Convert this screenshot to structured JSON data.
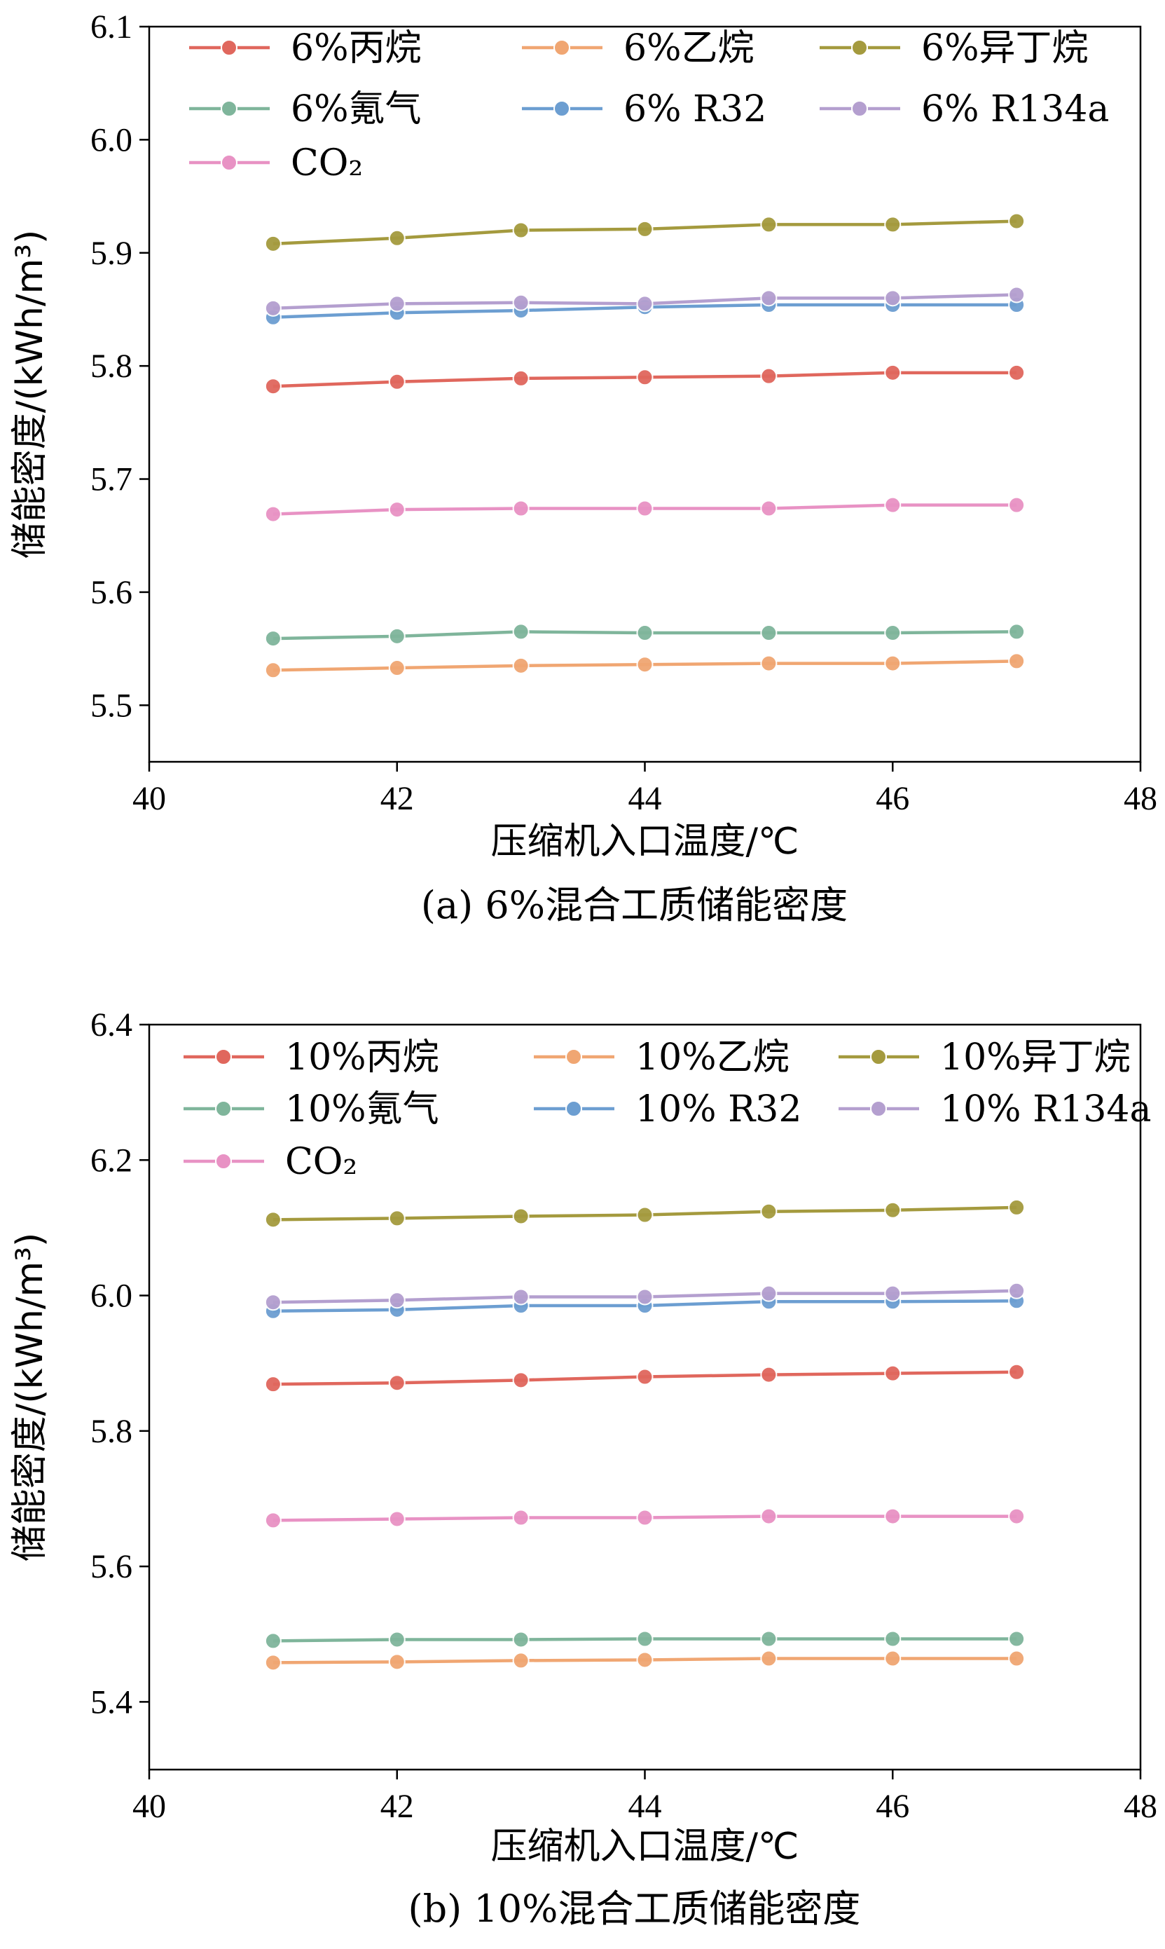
{
  "chart_data": [
    {
      "type": "line",
      "caption": "(a) 6%混合工质储能密度",
      "xlabel": "压缩机入口温度/℃",
      "ylabel": "储能密度/(kWh/m³)",
      "xlim": [
        40,
        48
      ],
      "ylim": [
        5.45,
        6.1
      ],
      "xticks": [
        "40",
        "42",
        "44",
        "46",
        "48"
      ],
      "yticks": [
        "5.5",
        "5.6",
        "5.7",
        "5.8",
        "5.9",
        "6.0",
        "6.1"
      ],
      "legend_position": "top",
      "x": [
        41,
        42,
        43,
        44,
        45,
        46,
        47
      ],
      "series": [
        {
          "name": "6%丙烷",
          "color": "#e0675d",
          "values": [
            5.782,
            5.786,
            5.789,
            5.79,
            5.791,
            5.794,
            5.794
          ]
        },
        {
          "name": "6%乙烷",
          "color": "#f0a672",
          "values": [
            5.531,
            5.533,
            5.535,
            5.536,
            5.537,
            5.537,
            5.539
          ]
        },
        {
          "name": "6%异丁烷",
          "color": "#a49a3e",
          "values": [
            5.908,
            5.913,
            5.92,
            5.921,
            5.925,
            5.925,
            5.928
          ]
        },
        {
          "name": "6%氪气",
          "color": "#7fb59b",
          "values": [
            5.559,
            5.561,
            5.565,
            5.564,
            5.564,
            5.564,
            5.565
          ]
        },
        {
          "name": "6% R32",
          "color": "#6c9ed1",
          "values": [
            5.843,
            5.847,
            5.849,
            5.852,
            5.854,
            5.854,
            5.854
          ]
        },
        {
          "name": "6% R134a",
          "color": "#b49fcf",
          "values": [
            5.851,
            5.855,
            5.856,
            5.855,
            5.86,
            5.86,
            5.863
          ]
        },
        {
          "name": "CO₂",
          "color": "#e892c4",
          "values": [
            5.669,
            5.673,
            5.674,
            5.674,
            5.674,
            5.677,
            5.677
          ]
        }
      ]
    },
    {
      "type": "line",
      "caption": "(b) 10%混合工质储能密度",
      "xlabel": "压缩机入口温度/℃",
      "ylabel": "储能密度/(kWh/m³)",
      "xlim": [
        40,
        48
      ],
      "ylim": [
        5.3,
        6.4
      ],
      "xticks": [
        "40",
        "42",
        "44",
        "46",
        "48"
      ],
      "yticks": [
        "5.4",
        "5.6",
        "5.8",
        "6.0",
        "6.2",
        "6.4"
      ],
      "legend_position": "top",
      "x": [
        41,
        42,
        43,
        44,
        45,
        46,
        47
      ],
      "series": [
        {
          "name": "10%丙烷",
          "color": "#e0675d",
          "values": [
            5.869,
            5.871,
            5.875,
            5.88,
            5.883,
            5.885,
            5.887
          ]
        },
        {
          "name": "10%乙烷",
          "color": "#f0a672",
          "values": [
            5.458,
            5.459,
            5.461,
            5.462,
            5.464,
            5.464,
            5.464
          ]
        },
        {
          "name": "10%异丁烷",
          "color": "#a49a3e",
          "values": [
            6.112,
            6.114,
            6.117,
            6.119,
            6.124,
            6.126,
            6.13
          ]
        },
        {
          "name": "10%氪气",
          "color": "#7fb59b",
          "values": [
            5.49,
            5.492,
            5.492,
            5.493,
            5.493,
            5.493,
            5.493
          ]
        },
        {
          "name": "10% R32",
          "color": "#6c9ed1",
          "values": [
            5.977,
            5.979,
            5.985,
            5.985,
            5.991,
            5.991,
            5.992
          ]
        },
        {
          "name": "10% R134a",
          "color": "#b49fcf",
          "values": [
            5.99,
            5.993,
            5.998,
            5.998,
            6.003,
            6.003,
            6.007
          ]
        },
        {
          "name": "CO₂",
          "color": "#e892c4",
          "values": [
            5.668,
            5.67,
            5.672,
            5.672,
            5.674,
            5.674,
            5.674
          ]
        }
      ]
    }
  ]
}
